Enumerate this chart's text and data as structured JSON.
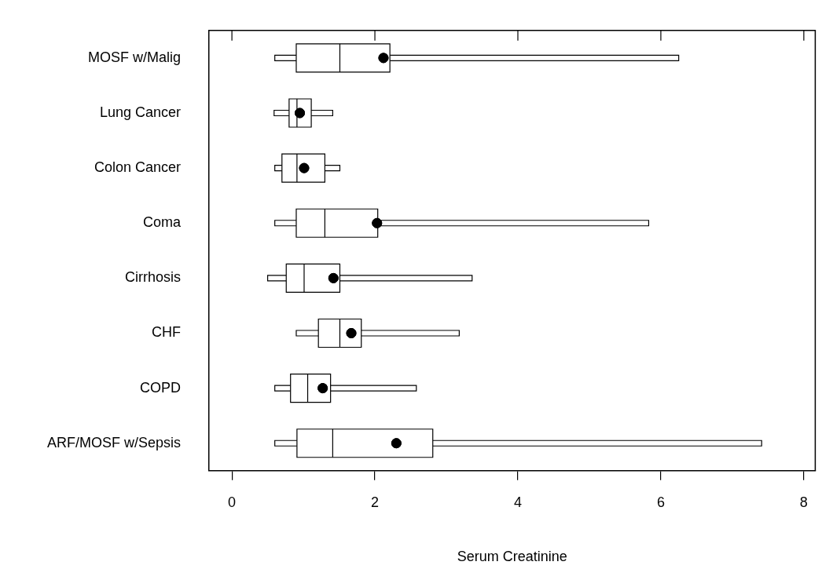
{
  "chart_data": {
    "type": "box",
    "orientation": "horizontal",
    "xlabel": "Serum Creatinine",
    "categories": [
      "MOSF w/Malig",
      "Lung Cancer",
      "Colon Cancer",
      "Coma",
      "Cirrhosis",
      "CHF",
      "COPD",
      "ARF/MOSF w/Sepsis"
    ],
    "boxes": [
      {
        "low": 0.6,
        "q1": 0.9,
        "median": 1.51,
        "q3": 2.21,
        "high": 6.25,
        "mean": 2.12
      },
      {
        "low": 0.59,
        "q1": 0.8,
        "median": 0.91,
        "q3": 1.11,
        "high": 1.41,
        "mean": 0.95
      },
      {
        "low": 0.6,
        "q1": 0.7,
        "median": 0.91,
        "q3": 1.3,
        "high": 1.51,
        "mean": 1.01
      },
      {
        "low": 0.6,
        "q1": 0.9,
        "median": 1.3,
        "q3": 2.04,
        "high": 5.83,
        "mean": 2.03
      },
      {
        "low": 0.5,
        "q1": 0.76,
        "median": 1.01,
        "q3": 1.51,
        "high": 3.36,
        "mean": 1.42
      },
      {
        "low": 0.9,
        "q1": 1.21,
        "median": 1.51,
        "q3": 1.81,
        "high": 3.18,
        "mean": 1.67
      },
      {
        "low": 0.6,
        "q1": 0.82,
        "median": 1.06,
        "q3": 1.38,
        "high": 2.58,
        "mean": 1.27
      },
      {
        "low": 0.6,
        "q1": 0.91,
        "median": 1.41,
        "q3": 2.81,
        "high": 7.41,
        "mean": 2.3
      }
    ],
    "xlim": [
      -0.32,
      8.16
    ],
    "xticks": [
      0,
      2,
      4,
      6,
      8
    ],
    "color": "#ffffff",
    "grid": false,
    "legend": false
  }
}
